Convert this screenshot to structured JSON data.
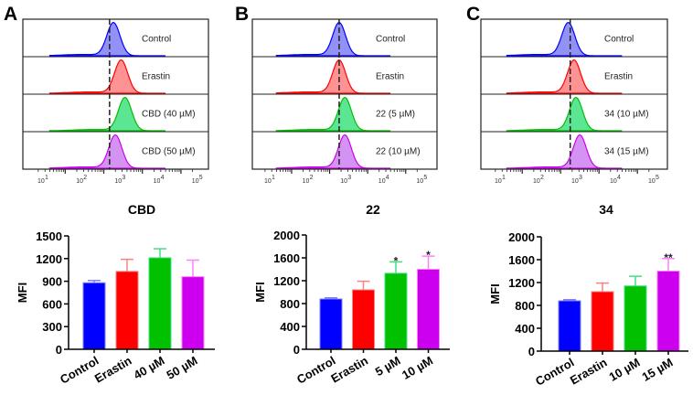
{
  "colors": {
    "control": "#0000ff",
    "erastin": "#ff0000",
    "treat1": "#00c000",
    "treat2": "#cc00ee",
    "error_bars": [
      "#7f7fff",
      "#ff8080",
      "#40e080",
      "#ff80ff"
    ],
    "hist_fill": [
      "#7f7ff5",
      "#ff8080",
      "#40e080",
      "#cc80f0"
    ]
  },
  "chart_data": [
    {
      "panel": "A",
      "type": "histogram-overlay",
      "x_scale": "log",
      "x_tick_labels": [
        "10",
        "10",
        "10",
        "10",
        "10"
      ],
      "x_tick_exponents": [
        "1",
        "2",
        "3",
        "4",
        "5"
      ],
      "reference_line_log10": 2.75,
      "rows": [
        {
          "label": "Control",
          "peak_log10": 2.85
        },
        {
          "label": "Erastin",
          "peak_log10": 3.05
        },
        {
          "label": "CBD (40 µM)",
          "peak_log10": 3.15
        },
        {
          "label": "CBD (50 µM)",
          "peak_log10": 2.9
        }
      ]
    },
    {
      "panel": "B",
      "type": "histogram-overlay",
      "x_scale": "log",
      "x_tick_labels": [
        "10",
        "10",
        "10",
        "10",
        "10"
      ],
      "x_tick_exponents": [
        "1",
        "2",
        "3",
        "4",
        "5"
      ],
      "reference_line_log10": 2.85,
      "rows": [
        {
          "label": "Control",
          "peak_log10": 2.85
        },
        {
          "label": "Erastin",
          "peak_log10": 2.85
        },
        {
          "label": "22 (5 µM)",
          "peak_log10": 3.0
        },
        {
          "label": "22 (10 µM)",
          "peak_log10": 3.0
        }
      ]
    },
    {
      "panel": "C",
      "type": "histogram-overlay",
      "x_scale": "log",
      "x_tick_labels": [
        "10",
        "10",
        "10",
        "10",
        "10"
      ],
      "x_tick_exponents": [
        "1",
        "2",
        "3",
        "4",
        "5"
      ],
      "reference_line_log10": 2.85,
      "rows": [
        {
          "label": "Control",
          "peak_log10": 2.8
        },
        {
          "label": "Erastin",
          "peak_log10": 2.95
        },
        {
          "label": "34 (10 µM)",
          "peak_log10": 3.0
        },
        {
          "label": "34 (15 µM)",
          "peak_log10": 3.1
        }
      ]
    },
    {
      "type": "bar",
      "title": "CBD",
      "ylabel": "MFI",
      "ylim": [
        0,
        1500
      ],
      "yticks": [
        "0",
        "300",
        "600",
        "900",
        "1200",
        "1500"
      ],
      "categories": [
        "Control",
        "Erastin",
        "40 µM",
        "50 µM"
      ],
      "values": [
        880,
        1030,
        1210,
        960
      ],
      "errors": [
        30,
        160,
        120,
        220
      ],
      "significance": [
        "",
        "",
        "",
        ""
      ]
    },
    {
      "type": "bar",
      "title": "22",
      "ylabel": "MFI",
      "ylim": [
        0,
        2000
      ],
      "yticks": [
        "0",
        "400",
        "800",
        "1200",
        "1600",
        "2000"
      ],
      "categories": [
        "Control",
        "Erastin",
        "5 µM",
        "10 µM"
      ],
      "values": [
        880,
        1040,
        1330,
        1400
      ],
      "errors": [
        20,
        150,
        200,
        230
      ],
      "significance": [
        "",
        "",
        "*",
        "*"
      ]
    },
    {
      "type": "bar",
      "title": "34",
      "ylabel": "MFI",
      "ylim": [
        0,
        2000
      ],
      "yticks": [
        "0",
        "400",
        "800",
        "1200",
        "1600",
        "2000"
      ],
      "categories": [
        "Control",
        "Erastin",
        "10 µM",
        "15 µM"
      ],
      "values": [
        880,
        1040,
        1140,
        1400
      ],
      "errors": [
        20,
        150,
        170,
        220
      ],
      "significance": [
        "",
        "",
        "",
        "**"
      ]
    }
  ]
}
